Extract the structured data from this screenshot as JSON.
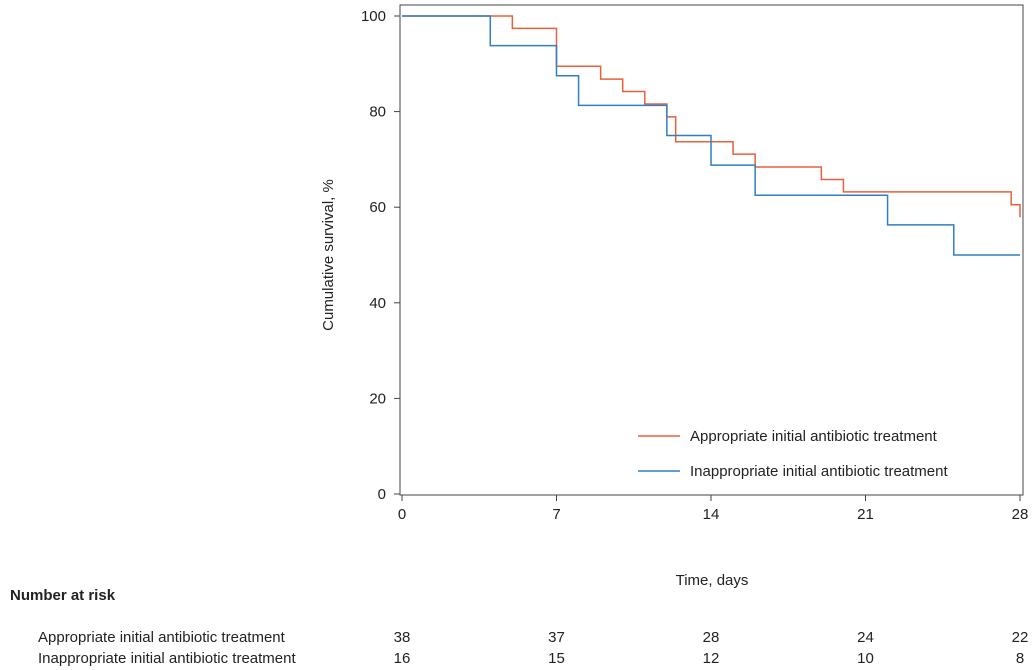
{
  "chart_data": {
    "type": "line",
    "step": true,
    "xlabel": "Time, days",
    "ylabel": "Cumulative survival, %",
    "xlim": [
      0,
      28
    ],
    "ylim": [
      0,
      100
    ],
    "xticks": [
      0,
      7,
      14,
      21,
      28
    ],
    "yticks": [
      0,
      20,
      40,
      60,
      80,
      100
    ],
    "grid": false,
    "legend_position": "bottom-right",
    "series": [
      {
        "name": "Appropriate initial antibiotic treatment",
        "color": "#e8603c",
        "x": [
          0,
          5,
          7,
          9,
          10,
          11,
          12,
          12.4,
          14.2,
          15,
          16,
          19,
          20,
          24,
          27.6,
          28
        ],
        "y": [
          100,
          97.4,
          89.5,
          86.8,
          84.2,
          81.6,
          78.9,
          73.7,
          73.7,
          71.1,
          68.4,
          65.8,
          63.2,
          63.2,
          60.5,
          57.9
        ]
      },
      {
        "name": "Inappropriate initial antibiotic treatment",
        "color": "#2f7fc1",
        "x": [
          0,
          4,
          7,
          8,
          12,
          14,
          16,
          22,
          25,
          28
        ],
        "y": [
          100,
          93.8,
          87.5,
          81.3,
          75,
          68.8,
          62.5,
          56.3,
          50,
          50
        ]
      }
    ],
    "risk_table": {
      "heading": "Number at risk",
      "times": [
        0,
        7,
        14,
        21,
        28
      ],
      "rows": [
        {
          "label": "Appropriate initial antibiotic treatment",
          "values": [
            "38",
            "37",
            "28",
            "24",
            "22"
          ]
        },
        {
          "label": "Inappropriate initial antibiotic treatment",
          "values": [
            "16",
            "15",
            "12",
            "10",
            "8"
          ]
        }
      ]
    }
  }
}
